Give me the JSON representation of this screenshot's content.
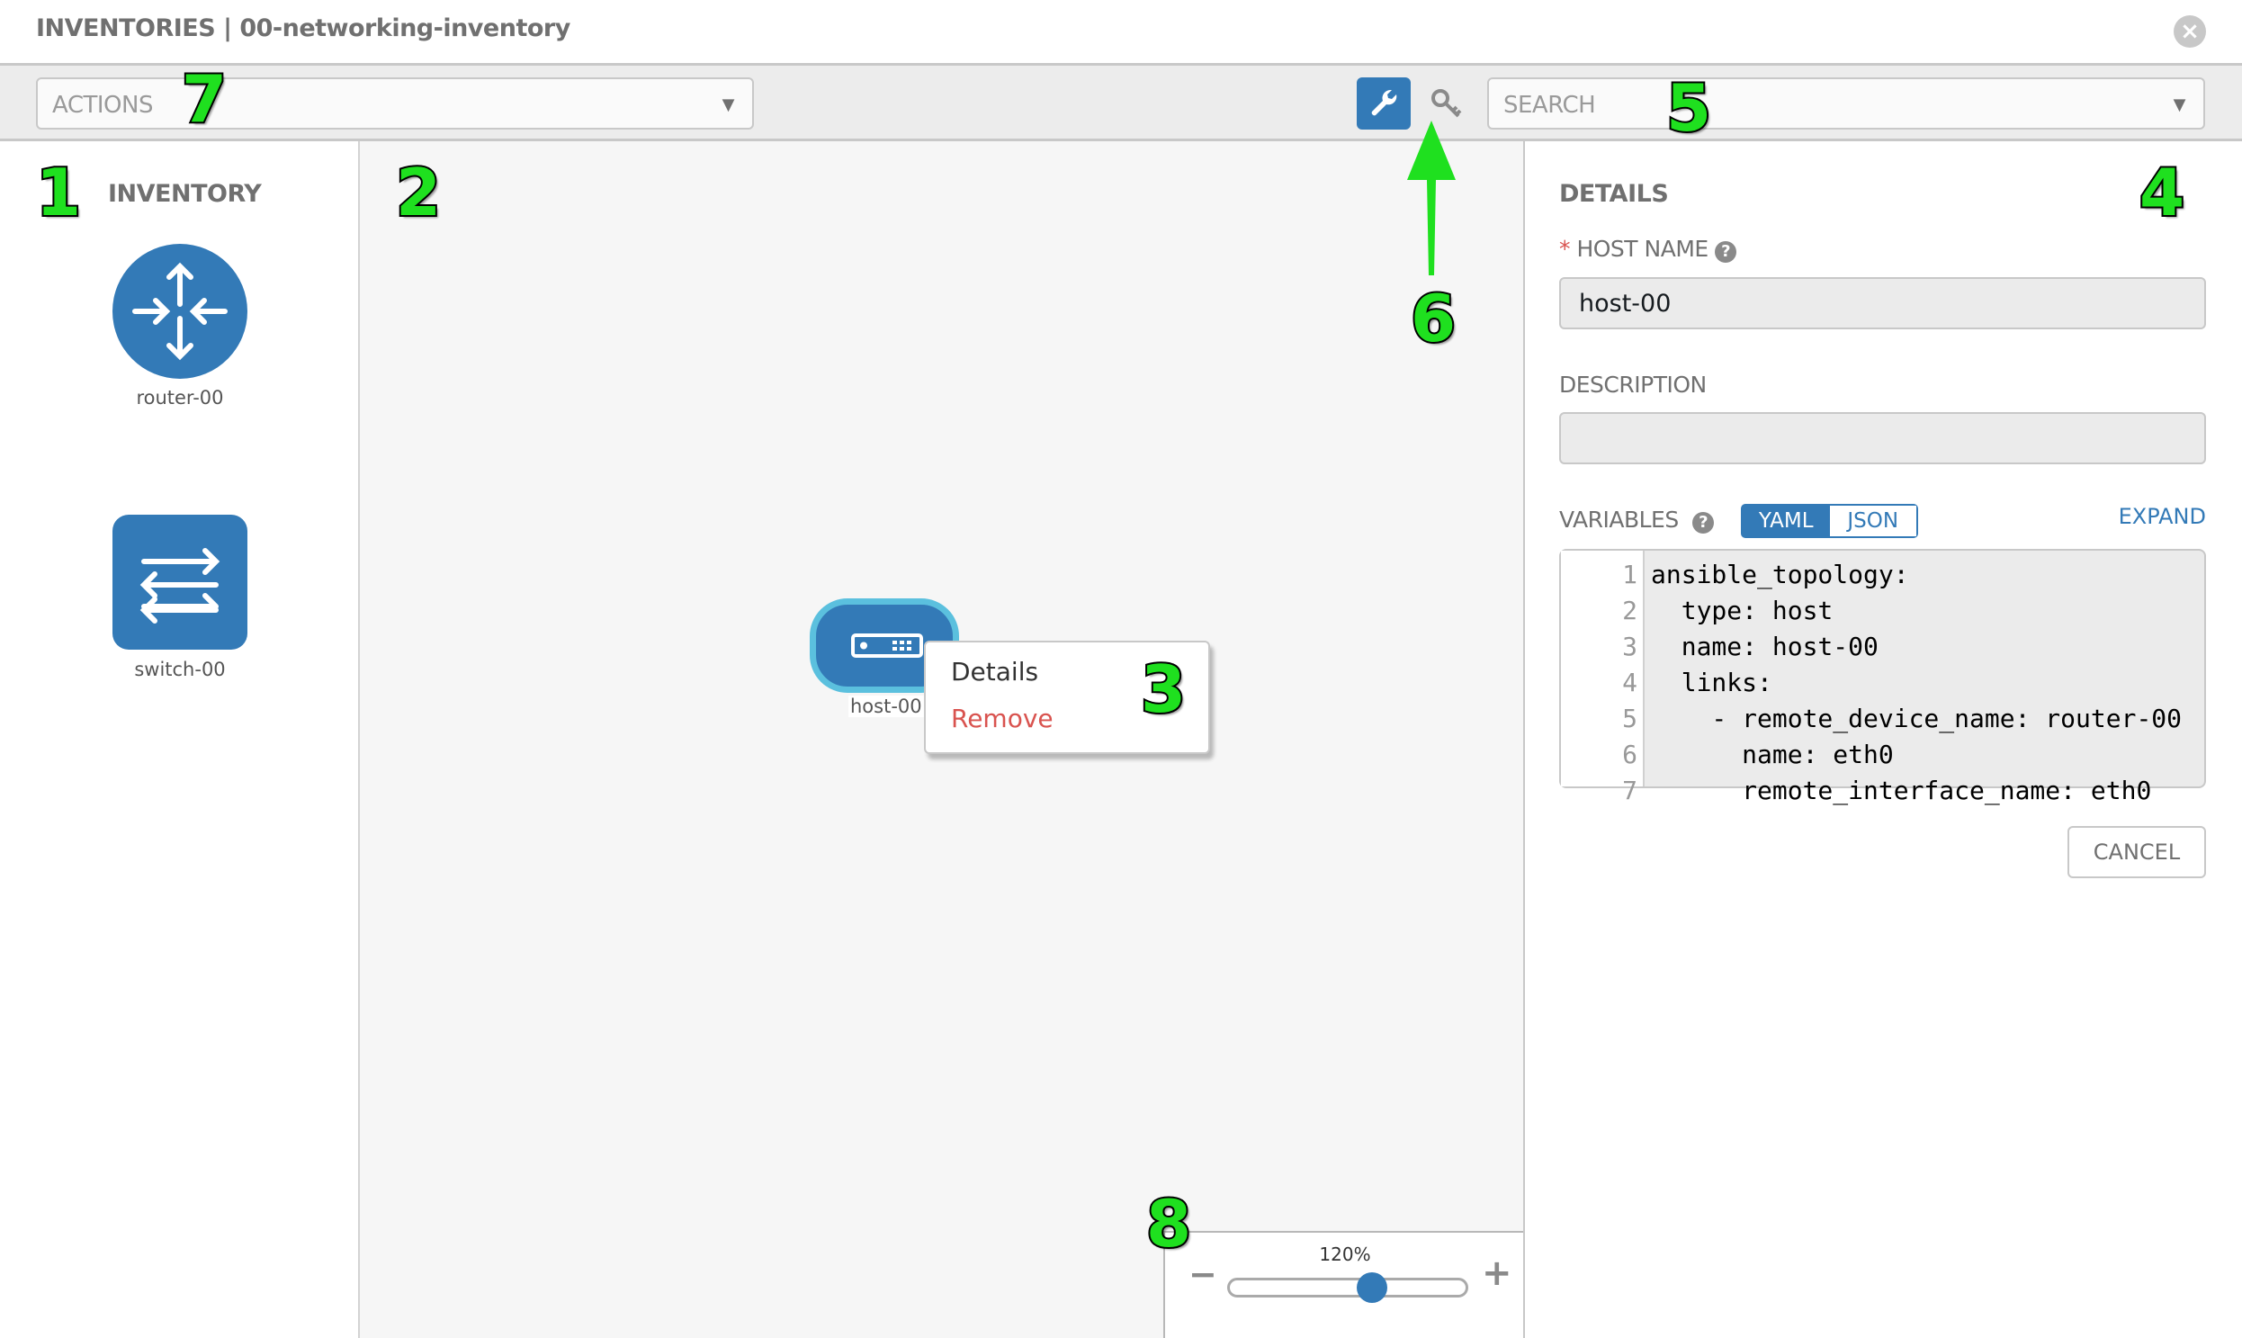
{
  "header": {
    "title": "INVENTORIES | 00-networking-inventory",
    "close_icon": "close-circle-icon"
  },
  "toolbar": {
    "actions_placeholder": "ACTIONS",
    "search_placeholder": "SEARCH",
    "wrench_icon": "wrench-icon",
    "key_icon": "key-icon"
  },
  "inventory": {
    "title": "INVENTORY",
    "items": [
      {
        "label": "router-00",
        "icon": "router-icon"
      },
      {
        "label": "switch-00",
        "icon": "switch-icon"
      }
    ]
  },
  "canvas": {
    "node": {
      "label": "host-00",
      "icon": "server-icon"
    },
    "context_menu": {
      "details": "Details",
      "remove": "Remove"
    }
  },
  "details": {
    "title": "DETAILS",
    "required_mark": "*",
    "host_name_label": "HOST NAME",
    "host_name_value": "host-00",
    "description_label": "DESCRIPTION",
    "description_value": "",
    "variables_label": "VARIABLES",
    "yaml": "YAML",
    "json": "JSON",
    "active_format": "YAML",
    "expand": "EXPAND",
    "cancel": "CANCEL",
    "code_lines": [
      {
        "n": "1",
        "t": "ansible_topology:"
      },
      {
        "n": "2",
        "t": "  type: host"
      },
      {
        "n": "3",
        "t": "  name: host-00"
      },
      {
        "n": "4",
        "t": "  links:"
      },
      {
        "n": "5",
        "t": "    - remote_device_name: router-00"
      },
      {
        "n": "6",
        "t": "      name: eth0"
      },
      {
        "n": "7",
        "t": "      remote_interface_name: eth0"
      }
    ]
  },
  "zoom": {
    "label": "120%",
    "slider_fraction": 0.6,
    "minus": "−",
    "plus": "+"
  },
  "annotations": [
    "1",
    "2",
    "3",
    "4",
    "5",
    "6",
    "7",
    "8"
  ],
  "colors": {
    "accent": "#337ab7",
    "node_border": "#5bc0de",
    "danger": "#d9534f",
    "annotation": "#1fe01f"
  }
}
